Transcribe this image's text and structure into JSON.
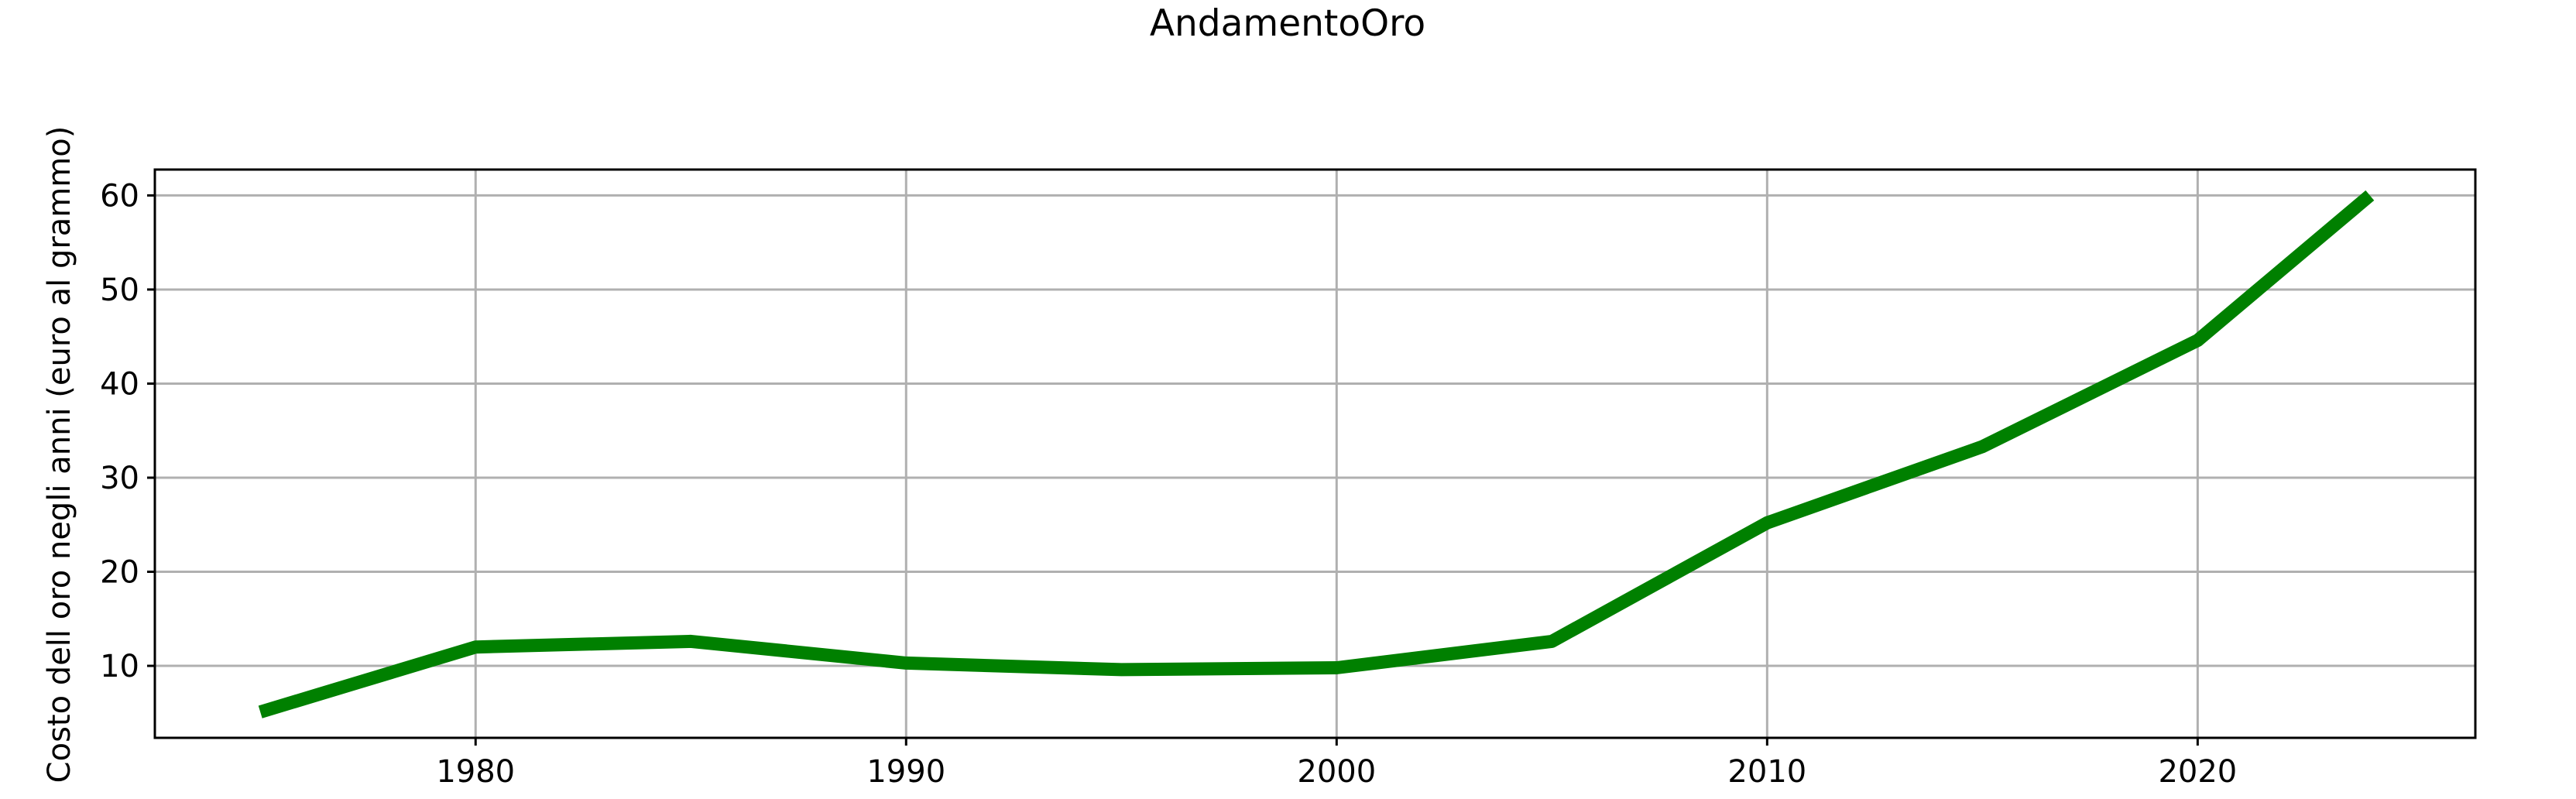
{
  "chart_data": {
    "type": "line",
    "title": "AndamentoOro",
    "xlabel": "",
    "ylabel": "Costo dell oro negli anni (euro al grammo)",
    "x": [
      1975,
      1980,
      1985,
      1990,
      1995,
      2000,
      2005,
      2010,
      2015,
      2020,
      2024
    ],
    "series": [
      {
        "values": [
          5.1,
          12.0,
          12.6,
          10.3,
          9.6,
          9.8,
          12.6,
          25.2,
          33.3,
          44.6,
          60.0
        ],
        "color": "#008000"
      }
    ],
    "xlim": [
      1972.55,
      2026.45
    ],
    "ylim": [
      2.35,
      62.75
    ],
    "xticks": [
      "1980",
      "1990",
      "2000",
      "2010",
      "2020"
    ],
    "yticks": [
      "10",
      "20",
      "30",
      "40",
      "50",
      "60"
    ],
    "grid": true,
    "legend": "none"
  }
}
